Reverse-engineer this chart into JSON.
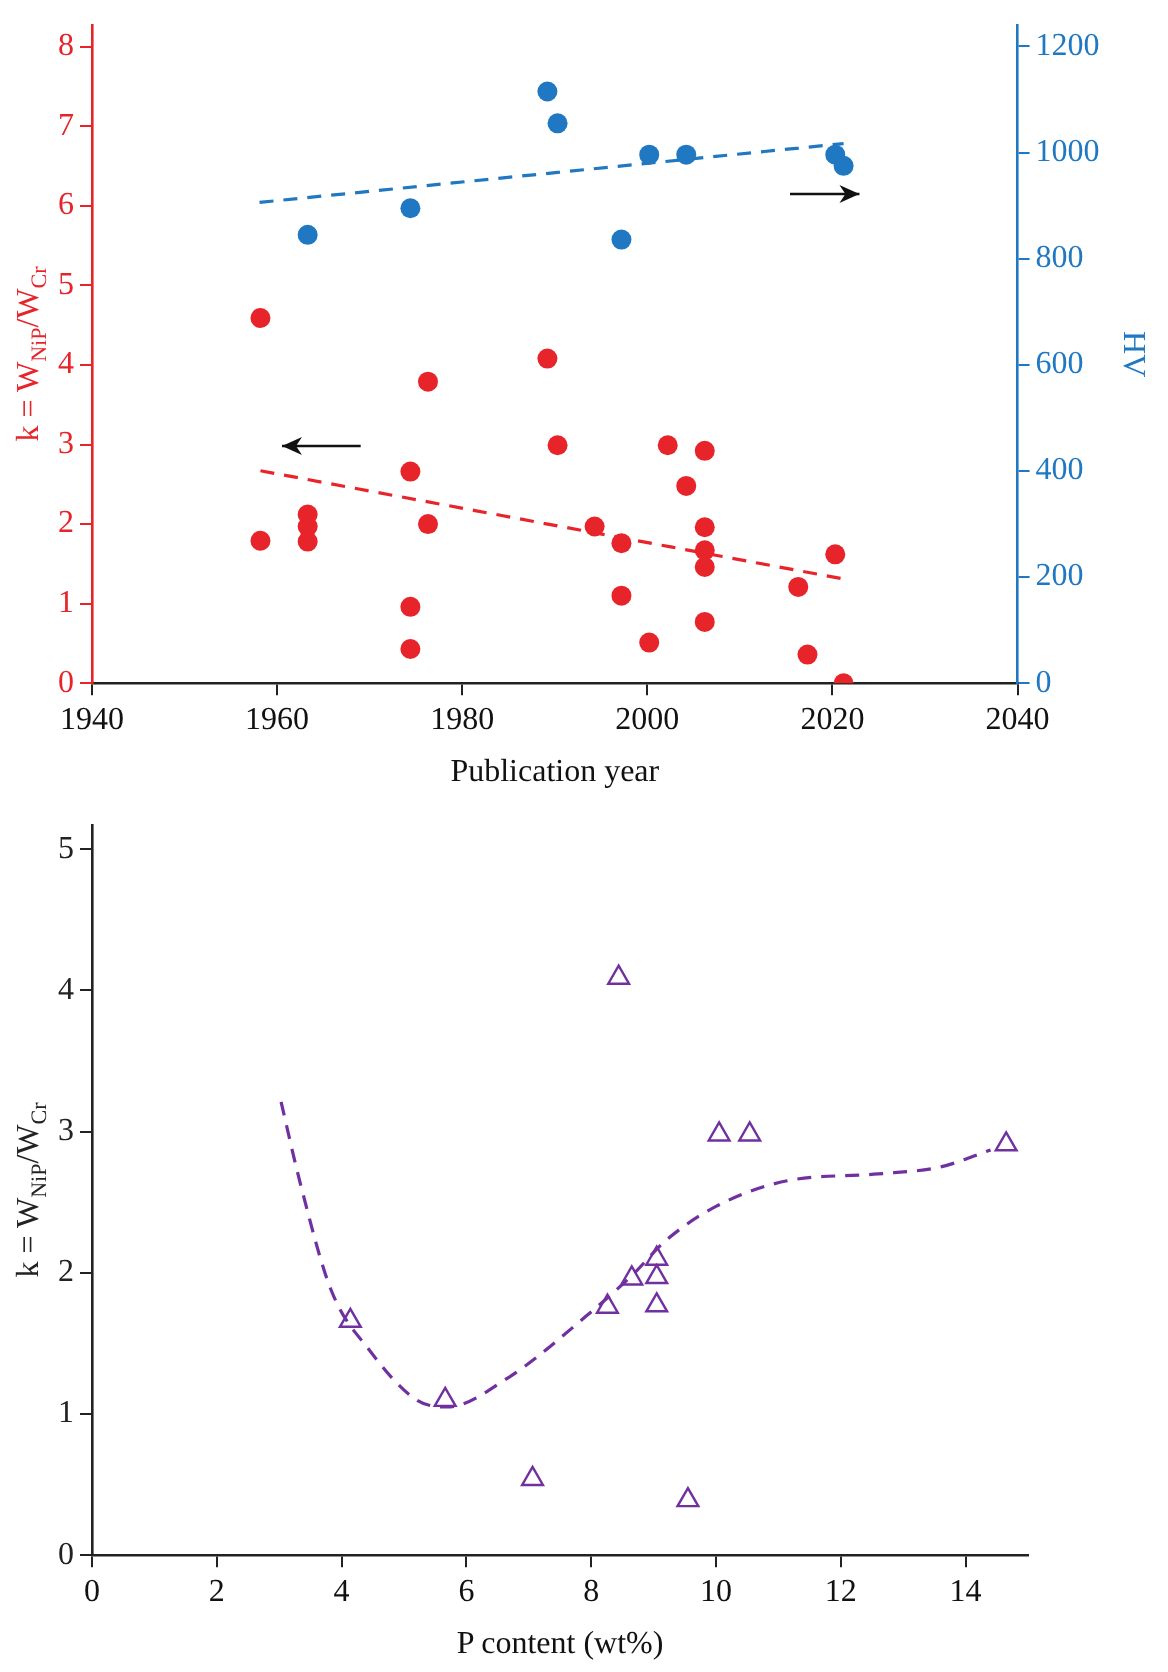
{
  "chart_data": [
    {
      "type": "scatter",
      "xlabel": "Publication year",
      "ylabel": "k = W$_{NiP}$/W$_{Cr}$",
      "y2label": "HV",
      "xlim": [
        1940,
        2040
      ],
      "xticks": [
        1940,
        1960,
        1980,
        2000,
        2020,
        2040
      ],
      "ylim": [
        0,
        8.27
      ],
      "yticks": [
        0,
        1,
        2,
        3,
        4,
        5,
        6,
        7,
        8
      ],
      "y2lim": [
        0,
        1240
      ],
      "y2ticks": [
        0,
        200,
        400,
        600,
        800,
        1000,
        1200
      ],
      "grid": false,
      "legend": false,
      "series": [
        {
          "color": "#e8242b",
          "marker": "circle",
          "x": [
            1958.2,
            1958.2,
            1963.3,
            1963.3,
            1963.3,
            1974.4,
            1974.4,
            1974.4,
            1976.3,
            1976.3,
            1989.2,
            1990.3,
            1994.3,
            1997.2,
            1997.2,
            2000.2,
            2002.2,
            2004.2,
            2006.2,
            2006.2,
            2006.2,
            2006.2,
            2006.2,
            2016.3,
            2017.3,
            2020.3,
            2021.2
          ],
          "values": [
            4.59,
            1.79,
            2.12,
            1.97,
            1.78,
            2.66,
            0.96,
            0.43,
            3.79,
            2.0,
            4.08,
            2.99,
            1.97,
            1.76,
            1.1,
            0.51,
            2.99,
            2.48,
            2.92,
            1.96,
            1.67,
            1.46,
            0.77,
            1.21,
            0.36,
            1.62,
            0.0
          ]
        },
        {
          "type": "line",
          "color": "#e8242b",
          "marker": "none",
          "line_style": "dashed",
          "x": [
            1958.2,
            2021.2
          ],
          "values": [
            2.67,
            1.31
          ]
        },
        {
          "axis": "y2",
          "color": "#1f78c1",
          "marker": "circle",
          "x": [
            1963.3,
            1974.4,
            1989.2,
            1990.3,
            1997.2,
            2000.2,
            2004.2,
            2020.3,
            2021.2
          ],
          "values": [
            845,
            895,
            1115,
            1055,
            836,
            996,
            996,
            996,
            975
          ]
        },
        {
          "type": "line",
          "axis": "y2",
          "color": "#1f78c1",
          "marker": "none",
          "line_style": "dashed",
          "x": [
            1958.1,
            2021.2
          ],
          "values": [
            906,
            1017
          ]
        }
      ]
    },
    {
      "type": "scatter",
      "xlabel": "P content (wt%)",
      "ylabel": "k = W$_{NiP}$/W$_{Cr}$",
      "xlim": [
        0,
        15
      ],
      "xticks": [
        0,
        2,
        4,
        6,
        8,
        10,
        12,
        14
      ],
      "ylim": [
        0,
        5.17
      ],
      "yticks": [
        0,
        1,
        2,
        3,
        4,
        5
      ],
      "grid": false,
      "legend": false,
      "series": [
        {
          "color": "#7030a0",
          "marker": "triangle",
          "x": [
            4.14,
            5.66,
            7.06,
            8.26,
            8.44,
            8.65,
            9.05,
            9.05,
            9.05,
            9.55,
            10.05,
            10.54,
            14.65
          ],
          "values": [
            1.66,
            1.1,
            0.54,
            1.76,
            4.09,
            1.96,
            2.1,
            1.97,
            1.77,
            0.39,
            2.98,
            2.98,
            2.91
          ]
        },
        {
          "type": "line",
          "color": "#7030a0",
          "marker": "none",
          "line_style": "dashed",
          "x": [
            3.03,
            3.34,
            3.83,
            4.45,
            5.2,
            5.69,
            6.68,
            7.91,
            8.65,
            9.2,
            10.0,
            11.12,
            12.6,
            13.6,
            14.4
          ],
          "values": [
            3.21,
            2.63,
            1.88,
            1.45,
            1.1,
            1.05,
            1.26,
            1.69,
            1.98,
            2.23,
            2.47,
            2.65,
            2.7,
            2.75,
            2.87
          ]
        }
      ]
    }
  ]
}
